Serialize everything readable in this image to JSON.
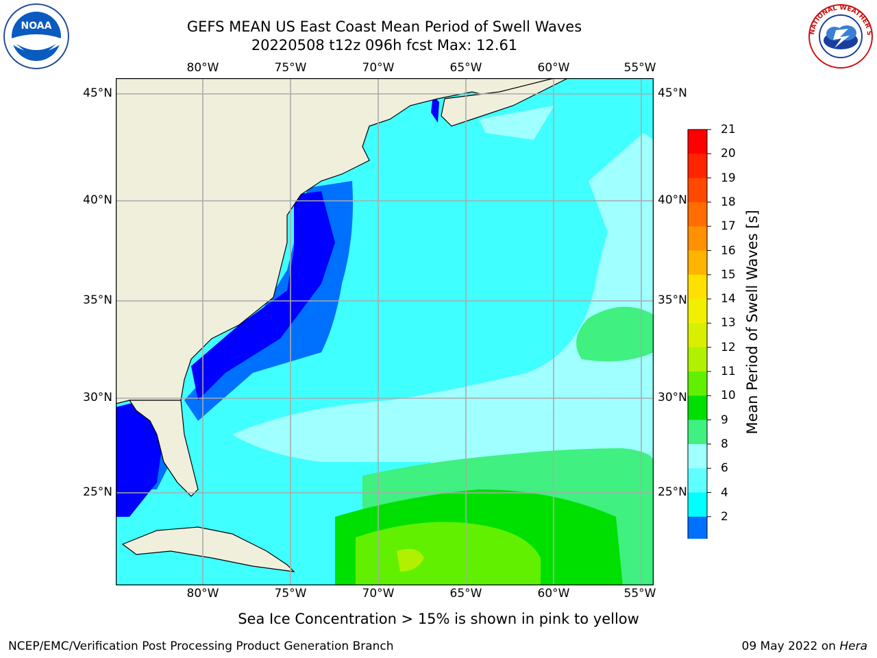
{
  "title_line1": "GEFS MEAN US East Coast Mean Period of Swell Waves",
  "title_line2": "20220508 t12z 096h fcst   Max: 12.61",
  "subtitle": "Sea Ice Concentration > 15% is shown in pink to yellow",
  "footer_left": "NCEP/EMC/Verification Post Processing Product Generation Branch",
  "footer_date": "09 May 2022 on ",
  "footer_host": "Hera",
  "colorbar": {
    "label": "Mean Period of Swell Waves [s]",
    "ticks": [
      "21",
      "20",
      "19",
      "18",
      "17",
      "16",
      "15",
      "14",
      "13",
      "12",
      "11",
      "10",
      "9",
      "8",
      "6",
      "4",
      "2"
    ],
    "colors": [
      "#ff0000",
      "#ff2400",
      "#ff4800",
      "#ff6c00",
      "#ff9000",
      "#ffb400",
      "#ffe000",
      "#f0f000",
      "#d8f000",
      "#b0f000",
      "#60f000",
      "#00e000",
      "#40f080",
      "#a0ffff",
      "#60ffff",
      "#00ffff",
      "#0070ff"
    ],
    "extend_color": "#0000ff"
  },
  "map": {
    "lon_labels": [
      "80°W",
      "75°W",
      "70°W",
      "65°W",
      "60°W",
      "55°W"
    ],
    "lat_labels": [
      "45°N",
      "40°N",
      "35°N",
      "30°N",
      "25°N"
    ],
    "land_color": "#efefdc",
    "ocean_base_color": "#40ffff"
  },
  "logos": {
    "noaa_text": "NOAA",
    "nws_text": "NATIONAL WEATHER SERVICE"
  }
}
